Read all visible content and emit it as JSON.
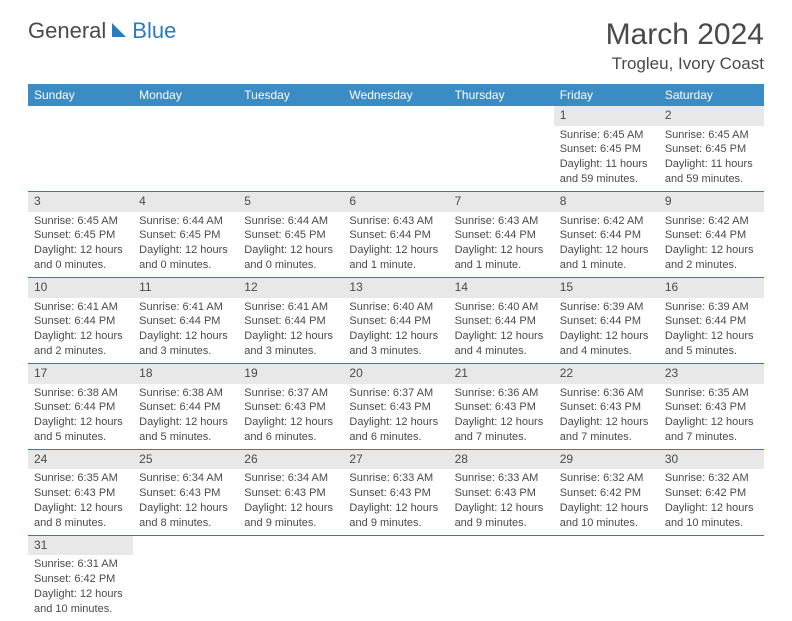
{
  "logo": {
    "text1": "General",
    "text2": "Blue"
  },
  "title": "March 2024",
  "location": "Trogleu, Ivory Coast",
  "colors": {
    "header_bg": "#3b8bc5",
    "header_text": "#ffffff",
    "daynum_bg": "#e8e8e8",
    "border": "#2a7bbf",
    "text": "#4a4a4a"
  },
  "day_headers": [
    "Sunday",
    "Monday",
    "Tuesday",
    "Wednesday",
    "Thursday",
    "Friday",
    "Saturday"
  ],
  "weeks": [
    [
      {
        "n": "",
        "sr": "",
        "ss": "",
        "dl": ""
      },
      {
        "n": "",
        "sr": "",
        "ss": "",
        "dl": ""
      },
      {
        "n": "",
        "sr": "",
        "ss": "",
        "dl": ""
      },
      {
        "n": "",
        "sr": "",
        "ss": "",
        "dl": ""
      },
      {
        "n": "",
        "sr": "",
        "ss": "",
        "dl": ""
      },
      {
        "n": "1",
        "sr": "Sunrise: 6:45 AM",
        "ss": "Sunset: 6:45 PM",
        "dl": "Daylight: 11 hours and 59 minutes."
      },
      {
        "n": "2",
        "sr": "Sunrise: 6:45 AM",
        "ss": "Sunset: 6:45 PM",
        "dl": "Daylight: 11 hours and 59 minutes."
      }
    ],
    [
      {
        "n": "3",
        "sr": "Sunrise: 6:45 AM",
        "ss": "Sunset: 6:45 PM",
        "dl": "Daylight: 12 hours and 0 minutes."
      },
      {
        "n": "4",
        "sr": "Sunrise: 6:44 AM",
        "ss": "Sunset: 6:45 PM",
        "dl": "Daylight: 12 hours and 0 minutes."
      },
      {
        "n": "5",
        "sr": "Sunrise: 6:44 AM",
        "ss": "Sunset: 6:45 PM",
        "dl": "Daylight: 12 hours and 0 minutes."
      },
      {
        "n": "6",
        "sr": "Sunrise: 6:43 AM",
        "ss": "Sunset: 6:44 PM",
        "dl": "Daylight: 12 hours and 1 minute."
      },
      {
        "n": "7",
        "sr": "Sunrise: 6:43 AM",
        "ss": "Sunset: 6:44 PM",
        "dl": "Daylight: 12 hours and 1 minute."
      },
      {
        "n": "8",
        "sr": "Sunrise: 6:42 AM",
        "ss": "Sunset: 6:44 PM",
        "dl": "Daylight: 12 hours and 1 minute."
      },
      {
        "n": "9",
        "sr": "Sunrise: 6:42 AM",
        "ss": "Sunset: 6:44 PM",
        "dl": "Daylight: 12 hours and 2 minutes."
      }
    ],
    [
      {
        "n": "10",
        "sr": "Sunrise: 6:41 AM",
        "ss": "Sunset: 6:44 PM",
        "dl": "Daylight: 12 hours and 2 minutes."
      },
      {
        "n": "11",
        "sr": "Sunrise: 6:41 AM",
        "ss": "Sunset: 6:44 PM",
        "dl": "Daylight: 12 hours and 3 minutes."
      },
      {
        "n": "12",
        "sr": "Sunrise: 6:41 AM",
        "ss": "Sunset: 6:44 PM",
        "dl": "Daylight: 12 hours and 3 minutes."
      },
      {
        "n": "13",
        "sr": "Sunrise: 6:40 AM",
        "ss": "Sunset: 6:44 PM",
        "dl": "Daylight: 12 hours and 3 minutes."
      },
      {
        "n": "14",
        "sr": "Sunrise: 6:40 AM",
        "ss": "Sunset: 6:44 PM",
        "dl": "Daylight: 12 hours and 4 minutes."
      },
      {
        "n": "15",
        "sr": "Sunrise: 6:39 AM",
        "ss": "Sunset: 6:44 PM",
        "dl": "Daylight: 12 hours and 4 minutes."
      },
      {
        "n": "16",
        "sr": "Sunrise: 6:39 AM",
        "ss": "Sunset: 6:44 PM",
        "dl": "Daylight: 12 hours and 5 minutes."
      }
    ],
    [
      {
        "n": "17",
        "sr": "Sunrise: 6:38 AM",
        "ss": "Sunset: 6:44 PM",
        "dl": "Daylight: 12 hours and 5 minutes."
      },
      {
        "n": "18",
        "sr": "Sunrise: 6:38 AM",
        "ss": "Sunset: 6:44 PM",
        "dl": "Daylight: 12 hours and 5 minutes."
      },
      {
        "n": "19",
        "sr": "Sunrise: 6:37 AM",
        "ss": "Sunset: 6:43 PM",
        "dl": "Daylight: 12 hours and 6 minutes."
      },
      {
        "n": "20",
        "sr": "Sunrise: 6:37 AM",
        "ss": "Sunset: 6:43 PM",
        "dl": "Daylight: 12 hours and 6 minutes."
      },
      {
        "n": "21",
        "sr": "Sunrise: 6:36 AM",
        "ss": "Sunset: 6:43 PM",
        "dl": "Daylight: 12 hours and 7 minutes."
      },
      {
        "n": "22",
        "sr": "Sunrise: 6:36 AM",
        "ss": "Sunset: 6:43 PM",
        "dl": "Daylight: 12 hours and 7 minutes."
      },
      {
        "n": "23",
        "sr": "Sunrise: 6:35 AM",
        "ss": "Sunset: 6:43 PM",
        "dl": "Daylight: 12 hours and 7 minutes."
      }
    ],
    [
      {
        "n": "24",
        "sr": "Sunrise: 6:35 AM",
        "ss": "Sunset: 6:43 PM",
        "dl": "Daylight: 12 hours and 8 minutes."
      },
      {
        "n": "25",
        "sr": "Sunrise: 6:34 AM",
        "ss": "Sunset: 6:43 PM",
        "dl": "Daylight: 12 hours and 8 minutes."
      },
      {
        "n": "26",
        "sr": "Sunrise: 6:34 AM",
        "ss": "Sunset: 6:43 PM",
        "dl": "Daylight: 12 hours and 9 minutes."
      },
      {
        "n": "27",
        "sr": "Sunrise: 6:33 AM",
        "ss": "Sunset: 6:43 PM",
        "dl": "Daylight: 12 hours and 9 minutes."
      },
      {
        "n": "28",
        "sr": "Sunrise: 6:33 AM",
        "ss": "Sunset: 6:43 PM",
        "dl": "Daylight: 12 hours and 9 minutes."
      },
      {
        "n": "29",
        "sr": "Sunrise: 6:32 AM",
        "ss": "Sunset: 6:42 PM",
        "dl": "Daylight: 12 hours and 10 minutes."
      },
      {
        "n": "30",
        "sr": "Sunrise: 6:32 AM",
        "ss": "Sunset: 6:42 PM",
        "dl": "Daylight: 12 hours and 10 minutes."
      }
    ],
    [
      {
        "n": "31",
        "sr": "Sunrise: 6:31 AM",
        "ss": "Sunset: 6:42 PM",
        "dl": "Daylight: 12 hours and 10 minutes."
      },
      {
        "n": "",
        "sr": "",
        "ss": "",
        "dl": ""
      },
      {
        "n": "",
        "sr": "",
        "ss": "",
        "dl": ""
      },
      {
        "n": "",
        "sr": "",
        "ss": "",
        "dl": ""
      },
      {
        "n": "",
        "sr": "",
        "ss": "",
        "dl": ""
      },
      {
        "n": "",
        "sr": "",
        "ss": "",
        "dl": ""
      },
      {
        "n": "",
        "sr": "",
        "ss": "",
        "dl": ""
      }
    ]
  ]
}
